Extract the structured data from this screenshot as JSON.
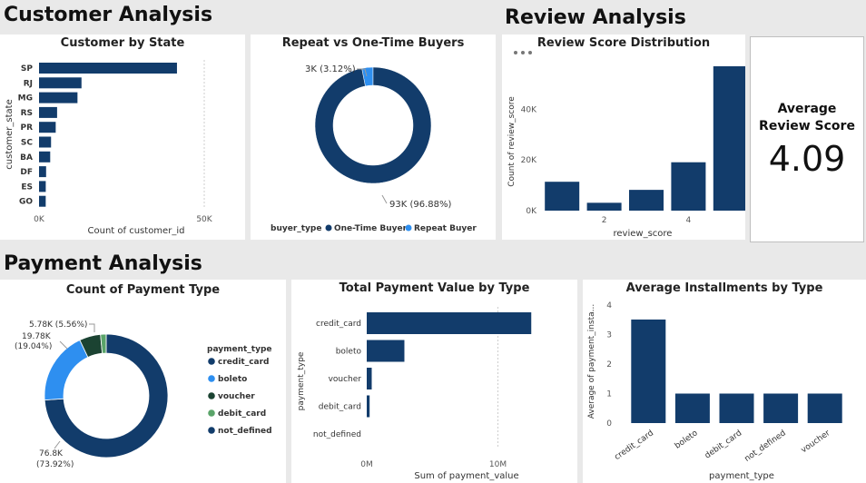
{
  "sections": {
    "customer": "Customer Analysis",
    "review": "Review Analysis",
    "payment": "Payment Analysis"
  },
  "colors": {
    "primary": "#123c6b",
    "light_blue": "#2e8ff0",
    "dark_green": "#1b4332",
    "green": "#5aa469"
  },
  "kpi": {
    "label_line1": "Average",
    "label_line2": "Review Score",
    "value": "4.09"
  },
  "more_options_icon": "ellipsis-icon",
  "chart_data": [
    {
      "id": "customer_by_state",
      "type": "bar",
      "orientation": "horizontal",
      "title": "Customer by State",
      "ylabel": "customer_state",
      "xlabel": "Count of customer_id",
      "categories": [
        "SP",
        "RJ",
        "MG",
        "RS",
        "PR",
        "SC",
        "BA",
        "DF",
        "ES",
        "GO"
      ],
      "values": [
        41746,
        12852,
        11635,
        5466,
        5045,
        3637,
        3380,
        2140,
        2033,
        2020
      ],
      "xlim": [
        0,
        50000
      ],
      "xticks": [
        "0K",
        "50K"
      ]
    },
    {
      "id": "repeat_vs_onetime",
      "type": "pie",
      "donut": true,
      "title": "Repeat vs One-Time Buyers",
      "legend_title": "buyer_type",
      "legend_position": "bottom",
      "slices": [
        {
          "name": "One-Time Buyer",
          "value": 93,
          "percent": 96.88,
          "label": "93K (96.88%)",
          "color": "#123c6b"
        },
        {
          "name": "Repeat Buyer",
          "value": 3,
          "percent": 3.12,
          "label": "3K (3.12%)",
          "color": "#2e8ff0"
        }
      ]
    },
    {
      "id": "review_score_distribution",
      "type": "bar",
      "orientation": "vertical",
      "title": "Review Score Distribution",
      "xlabel": "review_score",
      "ylabel": "Count of review_score",
      "categories": [
        1,
        2,
        3,
        4,
        5
      ],
      "values": [
        11400,
        3100,
        8200,
        19100,
        57000
      ],
      "ylim": [
        0,
        57000
      ],
      "yticks": [
        {
          "value": 0,
          "label": "0K"
        },
        {
          "value": 20000,
          "label": "20K"
        },
        {
          "value": 40000,
          "label": "40K"
        }
      ],
      "xticks": [
        {
          "value": 2,
          "label": "2"
        },
        {
          "value": 4,
          "label": "4"
        }
      ]
    },
    {
      "id": "count_payment_type",
      "type": "pie",
      "donut": true,
      "title": "Count of Payment Type",
      "legend_title": "payment_type",
      "legend_position": "right",
      "slices": [
        {
          "name": "credit_card",
          "value": 76.8,
          "percent": 73.92,
          "label1": "76.8K",
          "label2": "(73.92%)",
          "color": "#123c6b"
        },
        {
          "name": "boleto",
          "value": 19.78,
          "percent": 19.04,
          "label1": "19.78K",
          "label2": "(19.04%)",
          "color": "#2e8ff0"
        },
        {
          "name": "voucher",
          "value": 5.78,
          "percent": 5.56,
          "label1": "5.78K (5.56%)",
          "label2": "",
          "color": "#1b4332"
        },
        {
          "name": "debit_card",
          "value": 1.53,
          "percent": 1.47,
          "label1": "",
          "label2": "",
          "color": "#5aa469"
        },
        {
          "name": "not_defined",
          "value": 0.003,
          "percent": 0.01,
          "label1": "",
          "label2": "",
          "color": "#123c6b"
        }
      ]
    },
    {
      "id": "total_payment_value",
      "type": "bar",
      "orientation": "horizontal",
      "title": "Total Payment Value by Type",
      "ylabel": "payment_type",
      "xlabel": "Sum of payment_value",
      "categories": [
        "credit_card",
        "boleto",
        "voucher",
        "debit_card",
        "not_defined"
      ],
      "values": [
        12540000,
        2870000,
        380000,
        220000,
        0
      ],
      "xlim": [
        0,
        12800000
      ],
      "xticks": [
        {
          "value": 0,
          "label": "0M"
        },
        {
          "value": 10000000,
          "label": "10M"
        }
      ]
    },
    {
      "id": "avg_installments",
      "type": "bar",
      "orientation": "vertical",
      "title": "Average Installments by Type",
      "xlabel": "payment_type",
      "ylabel": "Average of payment_insta...",
      "categories": [
        "credit_card",
        "boleto",
        "debit_card",
        "not_defined",
        "voucher"
      ],
      "values": [
        3.51,
        1,
        1,
        1,
        1
      ],
      "ylim": [
        0,
        4
      ],
      "yticks": [
        0,
        1,
        2,
        3,
        4
      ]
    }
  ]
}
